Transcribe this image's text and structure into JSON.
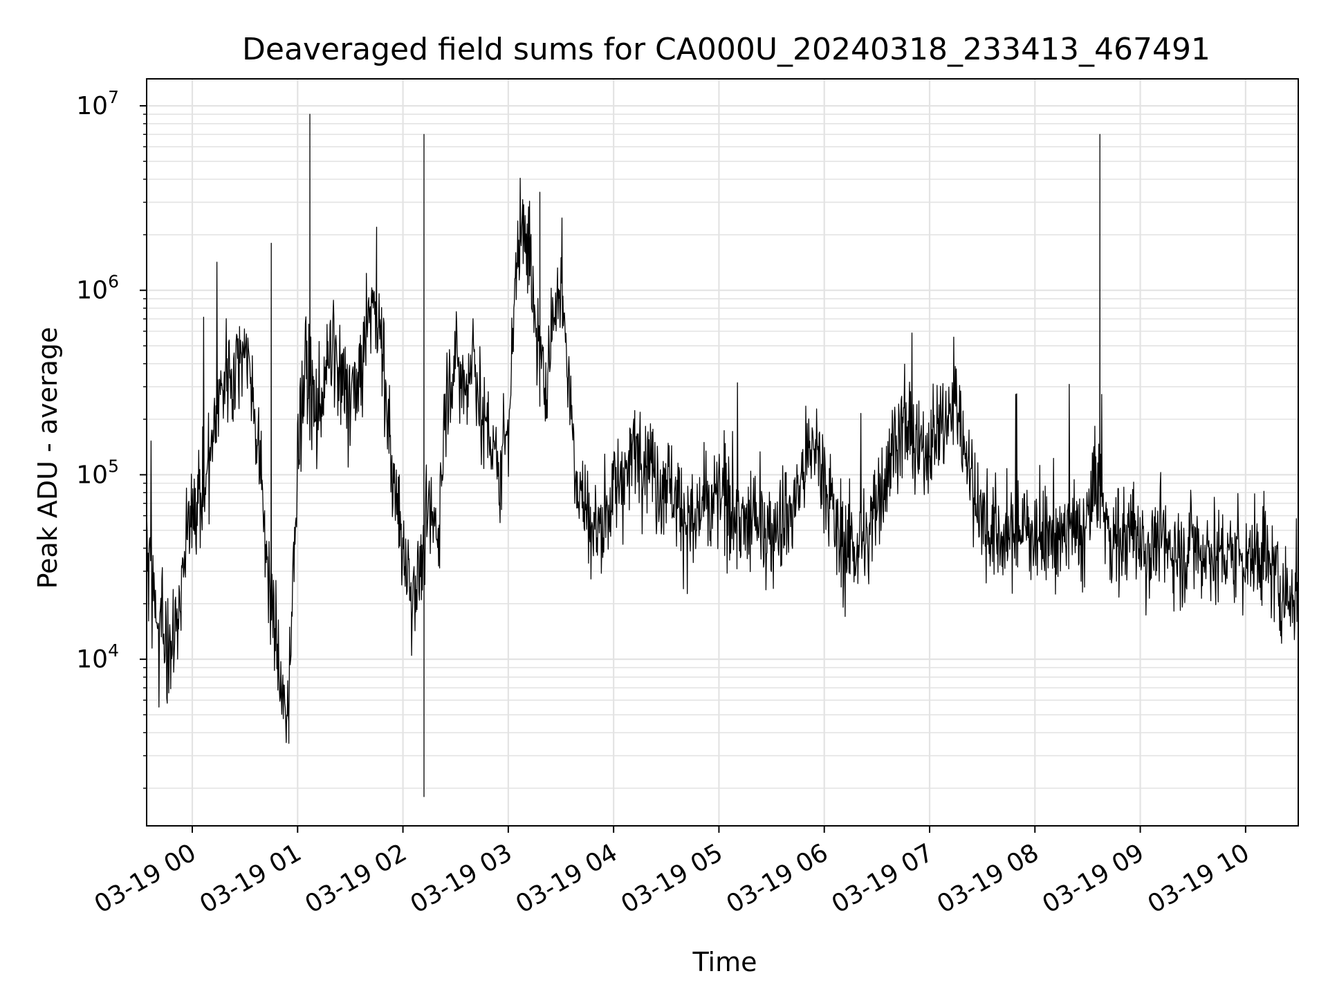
{
  "chart_data": {
    "type": "line",
    "title": "Deaveraged field sums for CA000U_20240318_233413_467491",
    "xlabel": "Time",
    "ylabel": "Peak ADU - average",
    "yscale": "log",
    "ylim": [
      1250,
      14000000
    ],
    "xlim": [
      "03-18 23:34",
      "03-19 10:30"
    ],
    "x_ticks": [
      "03-19 00",
      "03-19 01",
      "03-19 02",
      "03-19 03",
      "03-19 04",
      "03-19 05",
      "03-19 06",
      "03-19 07",
      "03-19 08",
      "03-19 09",
      "03-19 10"
    ],
    "y_ticks": [
      {
        "value": 10000,
        "base": "10",
        "exp": "4"
      },
      {
        "value": 100000,
        "base": "10",
        "exp": "5"
      },
      {
        "value": 1000000,
        "base": "10",
        "exp": "6"
      },
      {
        "value": 10000000,
        "base": "10",
        "exp": "7"
      }
    ],
    "grid": true,
    "minor_grid": true,
    "line_color": "#000000",
    "grid_color": "#e3e3e3",
    "series": [
      {
        "x": [
          "03-18 23:34",
          "03-18 23:40",
          "03-18 23:45",
          "03-18 23:50",
          "03-18 23:55",
          "03-19 00:00",
          "03-19 00:05",
          "03-19 00:10",
          "03-19 00:15",
          "03-19 00:20",
          "03-19 00:25",
          "03-19 00:30",
          "03-19 00:35",
          "03-19 00:40",
          "03-19 00:45",
          "03-19 00:50",
          "03-19 00:55",
          "03-19 01:00",
          "03-19 01:05",
          "03-19 01:10",
          "03-19 01:15",
          "03-19 01:20",
          "03-19 01:25",
          "03-19 01:30",
          "03-19 01:35",
          "03-19 01:40",
          "03-19 01:45",
          "03-19 01:50",
          "03-19 01:55",
          "03-19 02:00",
          "03-19 02:05",
          "03-19 02:10",
          "03-19 02:15",
          "03-19 02:20",
          "03-19 02:25",
          "03-19 02:30",
          "03-19 02:35",
          "03-19 02:40",
          "03-19 02:45",
          "03-19 02:50",
          "03-19 02:55",
          "03-19 03:00",
          "03-19 03:05",
          "03-19 03:10",
          "03-19 03:15",
          "03-19 03:20",
          "03-19 03:25",
          "03-19 03:30",
          "03-19 03:35",
          "03-19 03:40",
          "03-19 03:45",
          "03-19 03:50",
          "03-19 03:55",
          "03-19 04:00",
          "03-19 04:05",
          "03-19 04:10",
          "03-19 04:15",
          "03-19 04:20",
          "03-19 04:25",
          "03-19 04:30",
          "03-19 04:35",
          "03-19 04:40",
          "03-19 04:45",
          "03-19 04:50",
          "03-19 04:55",
          "03-19 05:00",
          "03-19 05:05",
          "03-19 05:10",
          "03-19 05:15",
          "03-19 05:20",
          "03-19 05:25",
          "03-19 05:30",
          "03-19 05:35",
          "03-19 05:40",
          "03-19 05:45",
          "03-19 05:50",
          "03-19 05:55",
          "03-19 06:00",
          "03-19 06:05",
          "03-19 06:10",
          "03-19 06:15",
          "03-19 06:20",
          "03-19 06:25",
          "03-19 06:30",
          "03-19 06:35",
          "03-19 06:40",
          "03-19 06:45",
          "03-19 06:50",
          "03-19 06:55",
          "03-19 07:00",
          "03-19 07:05",
          "03-19 07:10",
          "03-19 07:15",
          "03-19 07:20",
          "03-19 07:25",
          "03-19 07:30",
          "03-19 07:35",
          "03-19 07:40",
          "03-19 07:45",
          "03-19 07:50",
          "03-19 07:55",
          "03-19 08:00",
          "03-19 08:05",
          "03-19 08:10",
          "03-19 08:15",
          "03-19 08:20",
          "03-19 08:25",
          "03-19 08:30",
          "03-19 08:35",
          "03-19 08:40",
          "03-19 08:45",
          "03-19 08:50",
          "03-19 08:55",
          "03-19 09:00",
          "03-19 09:05",
          "03-19 09:10",
          "03-19 09:15",
          "03-19 09:20",
          "03-19 09:25",
          "03-19 09:30",
          "03-19 09:35",
          "03-19 09:40",
          "03-19 09:45",
          "03-19 09:50",
          "03-19 09:55",
          "03-19 10:00",
          "03-19 10:05",
          "03-19 10:10",
          "03-19 10:15",
          "03-19 10:20",
          "03-19 10:25",
          "03-19 10:30"
        ],
        "y": [
          40000,
          15000,
          12000,
          14000,
          30000,
          80000,
          70000,
          120000,
          250000,
          400000,
          350000,
          600000,
          250000,
          80000,
          20000,
          8000,
          5000,
          150000,
          400000,
          200000,
          300000,
          500000,
          300000,
          250000,
          300000,
          700000,
          900000,
          300000,
          80000,
          40000,
          25000,
          30000,
          60000,
          50000,
          300000,
          400000,
          300000,
          500000,
          200000,
          150000,
          100000,
          200000,
          1500000,
          2500000,
          700000,
          300000,
          600000,
          1200000,
          300000,
          80000,
          60000,
          50000,
          60000,
          80000,
          100000,
          120000,
          150000,
          120000,
          90000,
          100000,
          80000,
          60000,
          50000,
          70000,
          60000,
          80000,
          70000,
          60000,
          50000,
          60000,
          50000,
          50000,
          60000,
          60000,
          80000,
          120000,
          150000,
          100000,
          60000,
          40000,
          40000,
          45000,
          40000,
          80000,
          100000,
          150000,
          200000,
          150000,
          120000,
          150000,
          180000,
          200000,
          250000,
          150000,
          80000,
          60000,
          50000,
          45000,
          45000,
          50000,
          50000,
          50000,
          45000,
          50000,
          45000,
          50000,
          45000,
          55000,
          100000,
          55000,
          45000,
          45000,
          50000,
          45000,
          40000,
          45000,
          40000,
          40000,
          35000,
          45000,
          40000,
          40000,
          35000,
          35000,
          40000,
          35000,
          35000,
          40000,
          30000,
          25000,
          20000,
          25000
        ],
        "spikes": [
          {
            "x": "03-19 01:07",
            "y": 9000000
          },
          {
            "x": "03-19 02:12",
            "y": 7000000
          },
          {
            "x": "03-19 02:12",
            "y": 1800
          },
          {
            "x": "03-19 03:18",
            "y": 3400000
          },
          {
            "x": "03-19 08:37",
            "y": 7000000
          },
          {
            "x": "03-19 00:45",
            "y": 1800000
          },
          {
            "x": "03-19 00:55",
            "y": 3500
          },
          {
            "x": "03-19 01:45",
            "y": 2200000
          }
        ]
      }
    ]
  }
}
